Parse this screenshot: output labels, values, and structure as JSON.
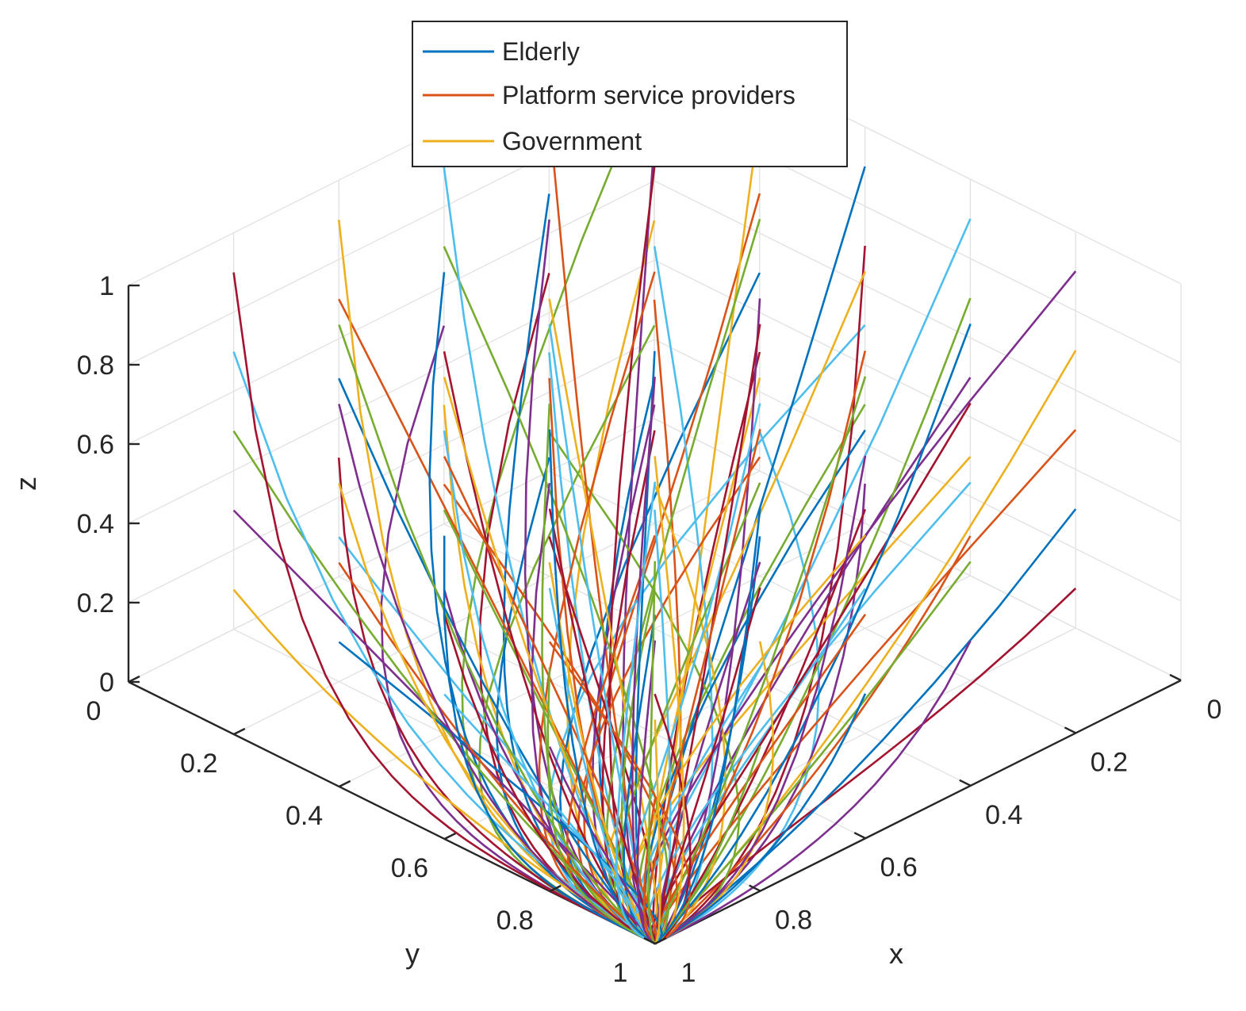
{
  "chart_data": {
    "type": "line",
    "projection": "3d",
    "title": "",
    "xlabel": "x",
    "ylabel": "y",
    "zlabel": "z",
    "xlim": [
      0,
      1
    ],
    "ylim": [
      0,
      1
    ],
    "zlim": [
      0,
      1
    ],
    "x_ticks": [
      "0",
      "0.2",
      "0.4",
      "0.6",
      "0.8",
      "1"
    ],
    "y_ticks": [
      "0",
      "0.2",
      "0.4",
      "0.6",
      "0.8",
      "1"
    ],
    "z_ticks": [
      "0",
      "0.2",
      "0.4",
      "0.6",
      "0.8",
      "1"
    ],
    "grid": true,
    "legend_position": "top-center",
    "legend": [
      {
        "name": "Elderly",
        "color": "#0072BD"
      },
      {
        "name": "Platform service providers",
        "color": "#D95319"
      },
      {
        "name": "Government",
        "color": "#EDB120"
      }
    ],
    "color_cycle": [
      "#0072BD",
      "#D95319",
      "#EDB120",
      "#7E2F8E",
      "#77AC30",
      "#4DBEEE",
      "#A2142F"
    ],
    "initial_grid_x": [
      0,
      0.2,
      0.4,
      0.6,
      0.8
    ],
    "initial_grid_y": [
      0,
      0.2,
      0.4,
      0.6,
      0.8
    ],
    "initial_grid_z": [
      0.1,
      0.3,
      0.5,
      0.7,
      0.9
    ],
    "convergence_point": {
      "x": 1,
      "y": 1,
      "z": 0
    }
  }
}
